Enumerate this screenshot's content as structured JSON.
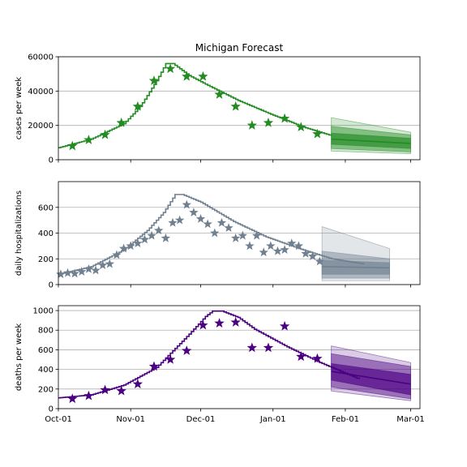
{
  "figure": {
    "title": "Michigan Forecast"
  },
  "x_axis": {
    "type": "date",
    "range": [
      "2020-10-01",
      "2021-03-05"
    ],
    "tick_dates": [
      "2020-10-01",
      "2020-11-01",
      "2020-12-01",
      "2021-01-01",
      "2021-02-01",
      "2021-03-01"
    ],
    "tick_labels": [
      "Oct-01",
      "Nov-01",
      "Dec-01",
      "Jan-01",
      "Feb-01",
      "Mar-01"
    ]
  },
  "chart_data": [
    {
      "type": "line",
      "panel": "cases",
      "ylabel": "cases per week",
      "ylim": [
        0,
        60000
      ],
      "yticks": [
        0,
        20000,
        40000,
        60000
      ],
      "ytick_labels": [
        "0",
        "20000",
        "40000",
        "60000"
      ],
      "grid": "horizontal",
      "color": "#228b22",
      "model": {
        "x": [
          "2020-10-01",
          "2020-10-15",
          "2020-10-29",
          "2020-11-05",
          "2020-11-12",
          "2020-11-16",
          "2020-11-19",
          "2020-11-26",
          "2020-12-03",
          "2020-12-17",
          "2020-12-31",
          "2021-01-14",
          "2021-01-26"
        ],
        "y": [
          7000,
          12000,
          21000,
          31000,
          46000,
          56000,
          56000,
          49000,
          44000,
          34500,
          26500,
          19000,
          14000
        ]
      },
      "observed": {
        "x": [
          "2020-10-07",
          "2020-10-14",
          "2020-10-21",
          "2020-10-28",
          "2020-11-04",
          "2020-11-11",
          "2020-11-18",
          "2020-11-25",
          "2020-12-02",
          "2020-12-09",
          "2020-12-16",
          "2020-12-23",
          "2020-12-30",
          "2021-01-06",
          "2021-01-13",
          "2021-01-20"
        ],
        "y": [
          8000,
          11500,
          14500,
          21500,
          31000,
          46000,
          53000,
          48500,
          48500,
          38000,
          31000,
          20000,
          21500,
          24000,
          19000,
          15000
        ]
      },
      "forecast": {
        "x": [
          "2021-01-26",
          "2021-03-01"
        ],
        "median": [
          12000,
          9500
        ],
        "band_50": {
          "lower": [
            9000,
            6500
          ],
          "upper": [
            15500,
            12500
          ]
        },
        "band_80": {
          "lower": [
            6500,
            4500
          ],
          "upper": [
            19500,
            14500
          ]
        },
        "band_95": {
          "lower": [
            5000,
            3500
          ],
          "upper": [
            24500,
            16000
          ]
        }
      }
    },
    {
      "type": "line",
      "panel": "hospitalizations",
      "ylabel": "daily hospitalizations",
      "ylim": [
        0,
        800
      ],
      "yticks": [
        0,
        200,
        400,
        600
      ],
      "ytick_labels": [
        "0",
        "200",
        "400",
        "600"
      ],
      "grid": "horizontal",
      "color": "#708090",
      "model": {
        "x": [
          "2020-10-01",
          "2020-10-15",
          "2020-10-29",
          "2020-11-08",
          "2020-11-15",
          "2020-11-20",
          "2020-11-23",
          "2020-12-01",
          "2020-12-15",
          "2020-12-29",
          "2021-01-12",
          "2021-01-26",
          "2021-02-09"
        ],
        "y": [
          80,
          140,
          270,
          420,
          560,
          700,
          700,
          640,
          490,
          370,
          280,
          200,
          160
        ]
      },
      "observed": {
        "x": [
          "2020-10-02",
          "2020-10-05",
          "2020-10-08",
          "2020-10-11",
          "2020-10-14",
          "2020-10-17",
          "2020-10-20",
          "2020-10-23",
          "2020-10-26",
          "2020-10-29",
          "2020-11-01",
          "2020-11-04",
          "2020-11-07",
          "2020-11-10",
          "2020-11-13",
          "2020-11-16",
          "2020-11-19",
          "2020-11-22",
          "2020-11-25",
          "2020-11-28",
          "2020-12-01",
          "2020-12-04",
          "2020-12-07",
          "2020-12-10",
          "2020-12-13",
          "2020-12-16",
          "2020-12-19",
          "2020-12-22",
          "2020-12-25",
          "2020-12-28",
          "2020-12-31",
          "2021-01-03",
          "2021-01-06",
          "2021-01-09",
          "2021-01-12",
          "2021-01-15",
          "2021-01-18",
          "2021-01-21"
        ],
        "y": [
          80,
          90,
          85,
          100,
          120,
          110,
          150,
          160,
          230,
          280,
          300,
          320,
          350,
          380,
          420,
          360,
          480,
          500,
          620,
          560,
          510,
          470,
          400,
          480,
          440,
          360,
          380,
          300,
          380,
          250,
          300,
          260,
          270,
          320,
          300,
          240,
          220,
          180
        ]
      },
      "forecast": {
        "x": [
          "2021-01-22",
          "2021-02-20"
        ],
        "median": [
          140,
          130
        ],
        "band_50": {
          "lower": [
            80,
            80
          ],
          "upper": [
            190,
            170
          ]
        },
        "band_80": {
          "lower": [
            50,
            50
          ],
          "upper": [
            260,
            200
          ]
        },
        "band_95": {
          "lower": [
            30,
            30
          ],
          "upper": [
            450,
            280
          ]
        }
      }
    },
    {
      "type": "line",
      "panel": "deaths",
      "ylabel": "deaths per week",
      "ylim": [
        0,
        1050
      ],
      "yticks": [
        0,
        200,
        400,
        600,
        800,
        1000
      ],
      "ytick_labels": [
        "0",
        "200",
        "400",
        "600",
        "800",
        "1000"
      ],
      "grid": "horizontal",
      "color": "#4b0082",
      "model": {
        "x": [
          "2020-10-01",
          "2020-10-15",
          "2020-10-29",
          "2020-11-12",
          "2020-11-26",
          "2020-12-03",
          "2020-12-06",
          "2020-12-10",
          "2020-12-17",
          "2020-12-24",
          "2021-01-07",
          "2021-01-21",
          "2021-02-07"
        ],
        "y": [
          110,
          140,
          240,
          420,
          760,
          940,
          995,
          995,
          930,
          810,
          630,
          470,
          300
        ]
      },
      "observed": {
        "x": [
          "2020-10-07",
          "2020-10-14",
          "2020-10-21",
          "2020-10-28",
          "2020-11-04",
          "2020-11-11",
          "2020-11-18",
          "2020-11-25",
          "2020-12-02",
          "2020-12-09",
          "2020-12-16",
          "2020-12-23",
          "2020-12-30",
          "2021-01-06",
          "2021-01-13",
          "2021-01-20"
        ],
        "y": [
          100,
          130,
          190,
          180,
          250,
          430,
          500,
          590,
          850,
          870,
          880,
          620,
          620,
          840,
          530,
          510
        ]
      },
      "forecast": {
        "x": [
          "2021-01-26",
          "2021-03-01"
        ],
        "median": [
          380,
          250
        ],
        "band_50": {
          "lower": [
            290,
            140
          ],
          "upper": [
            460,
            350
          ]
        },
        "band_80": {
          "lower": [
            220,
            100
          ],
          "upper": [
            560,
            430
          ]
        },
        "band_95": {
          "lower": [
            180,
            80
          ],
          "upper": [
            640,
            470
          ]
        }
      }
    }
  ]
}
